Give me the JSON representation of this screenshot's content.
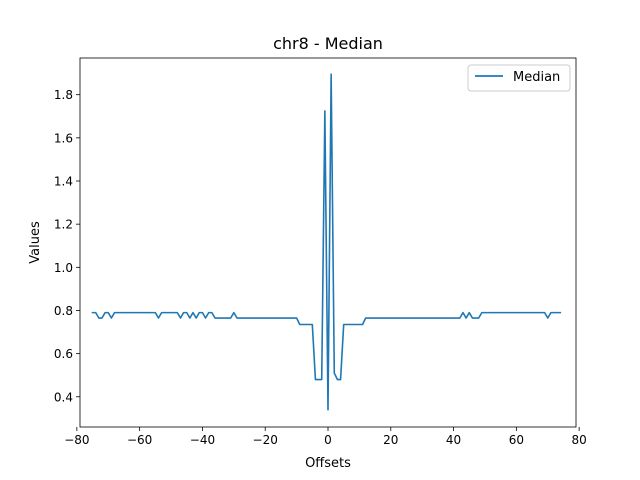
{
  "chart_data": {
    "type": "line",
    "title": "chr8 - Median",
    "xlabel": "Offsets",
    "ylabel": "Values",
    "xlim": [
      -79,
      79
    ],
    "ylim": [
      0.26,
      1.97
    ],
    "xticks": [
      -80,
      -60,
      -40,
      -20,
      0,
      20,
      40,
      60,
      80
    ],
    "xtick_labels": [
      "−80",
      "−60",
      "−40",
      "−20",
      "0",
      "20",
      "40",
      "60",
      "80"
    ],
    "yticks": [
      0.4,
      0.6,
      0.8,
      1.0,
      1.2,
      1.4,
      1.6,
      1.8
    ],
    "ytick_labels": [
      "0.4",
      "0.6",
      "0.8",
      "1.0",
      "1.2",
      "1.4",
      "1.6",
      "1.8"
    ],
    "legend_position": "upper-right",
    "series": [
      {
        "name": "Median",
        "color": "#1f77b4",
        "x": [
          -75,
          -74,
          -73,
          -72,
          -71,
          -70,
          -69,
          -68,
          -67,
          -66,
          -65,
          -64,
          -63,
          -62,
          -61,
          -60,
          -59,
          -58,
          -57,
          -56,
          -55,
          -54,
          -53,
          -52,
          -51,
          -50,
          -49,
          -48,
          -47,
          -46,
          -45,
          -44,
          -43,
          -42,
          -41,
          -40,
          -39,
          -38,
          -37,
          -36,
          -35,
          -34,
          -33,
          -32,
          -31,
          -30,
          -29,
          -28,
          -27,
          -26,
          -25,
          -24,
          -23,
          -22,
          -21,
          -20,
          -19,
          -18,
          -17,
          -16,
          -15,
          -14,
          -13,
          -12,
          -11,
          -10,
          -9,
          -8,
          -7,
          -6,
          -5,
          -4,
          -3,
          -2,
          -1,
          0,
          1,
          2,
          3,
          4,
          5,
          6,
          7,
          8,
          9,
          10,
          11,
          12,
          13,
          14,
          15,
          16,
          17,
          18,
          19,
          20,
          21,
          22,
          23,
          24,
          25,
          26,
          27,
          28,
          29,
          30,
          31,
          32,
          33,
          34,
          35,
          36,
          37,
          38,
          39,
          40,
          41,
          42,
          43,
          44,
          45,
          46,
          47,
          48,
          49,
          50,
          51,
          52,
          53,
          54,
          55,
          56,
          57,
          58,
          59,
          60,
          61,
          62,
          63,
          64,
          65,
          66,
          67,
          68,
          69,
          70,
          71,
          72,
          73,
          74
        ],
        "values": [
          0.79,
          0.79,
          0.765,
          0.765,
          0.79,
          0.79,
          0.765,
          0.79,
          0.79,
          0.79,
          0.79,
          0.79,
          0.79,
          0.79,
          0.79,
          0.79,
          0.79,
          0.79,
          0.79,
          0.79,
          0.79,
          0.765,
          0.79,
          0.79,
          0.79,
          0.79,
          0.79,
          0.79,
          0.765,
          0.79,
          0.79,
          0.765,
          0.79,
          0.765,
          0.79,
          0.79,
          0.765,
          0.79,
          0.79,
          0.765,
          0.765,
          0.765,
          0.765,
          0.765,
          0.765,
          0.79,
          0.765,
          0.765,
          0.765,
          0.765,
          0.765,
          0.765,
          0.765,
          0.765,
          0.765,
          0.765,
          0.765,
          0.765,
          0.765,
          0.765,
          0.765,
          0.765,
          0.765,
          0.765,
          0.765,
          0.765,
          0.735,
          0.735,
          0.735,
          0.735,
          0.735,
          0.48,
          0.48,
          0.48,
          1.725,
          0.34,
          1.895,
          0.51,
          0.48,
          0.48,
          0.735,
          0.735,
          0.735,
          0.735,
          0.735,
          0.735,
          0.735,
          0.765,
          0.765,
          0.765,
          0.765,
          0.765,
          0.765,
          0.765,
          0.765,
          0.765,
          0.765,
          0.765,
          0.765,
          0.765,
          0.765,
          0.765,
          0.765,
          0.765,
          0.765,
          0.765,
          0.765,
          0.765,
          0.765,
          0.765,
          0.765,
          0.765,
          0.765,
          0.765,
          0.765,
          0.765,
          0.765,
          0.765,
          0.79,
          0.765,
          0.79,
          0.765,
          0.765,
          0.765,
          0.79,
          0.79,
          0.79,
          0.79,
          0.79,
          0.79,
          0.79,
          0.79,
          0.79,
          0.79,
          0.79,
          0.79,
          0.79,
          0.79,
          0.79,
          0.79,
          0.79,
          0.79,
          0.79,
          0.79,
          0.79,
          0.765,
          0.79,
          0.79,
          0.79,
          0.79
        ]
      }
    ]
  }
}
